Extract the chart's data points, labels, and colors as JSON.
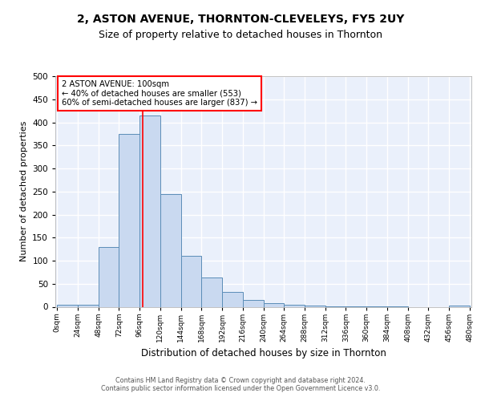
{
  "title": "2, ASTON AVENUE, THORNTON-CLEVELEYS, FY5 2UY",
  "subtitle": "Size of property relative to detached houses in Thornton",
  "xlabel": "Distribution of detached houses by size in Thornton",
  "ylabel": "Number of detached properties",
  "footer_line1": "Contains HM Land Registry data © Crown copyright and database right 2024.",
  "footer_line2": "Contains public sector information licensed under the Open Government Licence v3.0.",
  "bin_edges": [
    0,
    24,
    48,
    72,
    96,
    120,
    144,
    168,
    192,
    216,
    240,
    264,
    288,
    312,
    336,
    360,
    384,
    408,
    432,
    456,
    480
  ],
  "bin_values": [
    4,
    5,
    130,
    375,
    415,
    245,
    110,
    63,
    33,
    15,
    8,
    5,
    2,
    1,
    1,
    1,
    1,
    0,
    0,
    3
  ],
  "bar_facecolor": "#c9d9f0",
  "bar_edgecolor": "#5b8db8",
  "background_color": "#eaf0fb",
  "grid_color": "#ffffff",
  "vline_x": 100,
  "vline_color": "red",
  "annotation_text": "2 ASTON AVENUE: 100sqm\n← 40% of detached houses are smaller (553)\n60% of semi-detached houses are larger (837) →",
  "annotation_box_edgecolor": "red",
  "annotation_box_facecolor": "white",
  "ylim": [
    0,
    500
  ],
  "xlim_min": -2,
  "xlim_max": 482,
  "title_fontsize": 10,
  "subtitle_fontsize": 9,
  "tick_labels": [
    "0sqm",
    "24sqm",
    "48sqm",
    "72sqm",
    "96sqm",
    "120sqm",
    "144sqm",
    "168sqm",
    "192sqm",
    "216sqm",
    "240sqm",
    "264sqm",
    "288sqm",
    "312sqm",
    "336sqm",
    "360sqm",
    "384sqm",
    "408sqm",
    "432sqm",
    "456sqm",
    "480sqm"
  ]
}
